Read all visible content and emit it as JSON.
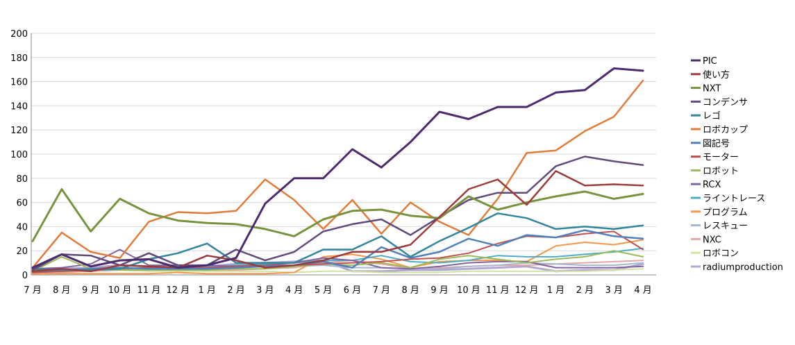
{
  "chart_data": {
    "type": "line",
    "title": "",
    "xlabel": "",
    "ylabel": "",
    "ylim": [
      0,
      200
    ],
    "yticks": [
      "0",
      "20",
      "40",
      "60",
      "80",
      "100",
      "120",
      "140",
      "160",
      "180",
      "200"
    ],
    "grid": "horizontal",
    "legend_position": "right",
    "categories": [
      "7 月",
      "8 月",
      "9 月",
      "10 月",
      "11 月",
      "12 月",
      "1 月",
      "2 月",
      "3 月",
      "4 月",
      "5 月",
      "6 月",
      "7 月",
      "8 月",
      "9 月",
      "10 月",
      "11 月",
      "12 月",
      "1 月",
      "2 月",
      "3 月",
      "4 月"
    ],
    "series": [
      {
        "name": "PIC",
        "color": "#4b2a6e",
        "width": 3,
        "values": [
          6,
          17,
          7,
          12,
          13,
          6,
          8,
          14,
          59,
          80,
          80,
          104,
          89,
          110,
          135,
          129,
          139,
          139,
          151,
          153,
          171,
          169
        ]
      },
      {
        "name": "使い方",
        "color": "#9b3b3b",
        "width": 2.5,
        "values": [
          3,
          5,
          3,
          8,
          7,
          6,
          16,
          12,
          6,
          8,
          12,
          19,
          19,
          25,
          48,
          71,
          79,
          58,
          86,
          74,
          75,
          74
        ]
      },
      {
        "name": "NXT",
        "color": "#77933c",
        "width": 3,
        "values": [
          28,
          71,
          36,
          63,
          51,
          45,
          43,
          42,
          38,
          32,
          46,
          53,
          54,
          49,
          47,
          65,
          54,
          60,
          65,
          69,
          63,
          67
        ]
      },
      {
        "name": "コンデンサ",
        "color": "#604a7b",
        "width": 2.5,
        "values": [
          4,
          17,
          16,
          8,
          18,
          8,
          8,
          21,
          12,
          19,
          36,
          42,
          46,
          33,
          48,
          62,
          68,
          68,
          90,
          98,
          94,
          91
        ]
      },
      {
        "name": "レゴ",
        "color": "#31859c",
        "width": 2.5,
        "values": [
          5,
          4,
          4,
          5,
          13,
          18,
          26,
          10,
          10,
          10,
          21,
          21,
          32,
          15,
          28,
          39,
          51,
          47,
          38,
          40,
          38,
          41
        ]
      },
      {
        "name": "ロボカップ",
        "color": "#e07b39",
        "width": 2.5,
        "values": [
          6,
          35,
          19,
          14,
          44,
          52,
          51,
          53,
          79,
          62,
          38,
          62,
          34,
          60,
          44,
          33,
          63,
          101,
          103,
          119,
          131,
          161
        ]
      },
      {
        "name": "図記号",
        "color": "#4f81bd",
        "width": 2.5,
        "values": [
          3,
          4,
          5,
          6,
          5,
          5,
          5,
          6,
          7,
          8,
          11,
          6,
          23,
          14,
          19,
          30,
          24,
          33,
          31,
          37,
          32,
          30
        ]
      },
      {
        "name": "モーター",
        "color": "#c0504d",
        "width": 2,
        "values": [
          2,
          3,
          4,
          5,
          6,
          6,
          6,
          7,
          8,
          8,
          9,
          10,
          11,
          13,
          14,
          18,
          26,
          32,
          31,
          34,
          36,
          21
        ]
      },
      {
        "name": "ロボット",
        "color": "#9bbb59",
        "width": 2,
        "values": [
          3,
          15,
          5,
          4,
          4,
          4,
          4,
          5,
          5,
          7,
          9,
          8,
          10,
          6,
          13,
          16,
          13,
          10,
          13,
          15,
          20,
          15
        ]
      },
      {
        "name": "RCX",
        "color": "#8064a2",
        "width": 2,
        "values": [
          5,
          6,
          9,
          21,
          8,
          8,
          8,
          7,
          8,
          10,
          14,
          12,
          6,
          5,
          7,
          10,
          11,
          11,
          6,
          6,
          6,
          7
        ]
      },
      {
        "name": "ライントレース",
        "color": "#4bacc6",
        "width": 2,
        "values": [
          2,
          3,
          4,
          5,
          6,
          7,
          7,
          8,
          9,
          10,
          12,
          12,
          16,
          11,
          10,
          12,
          16,
          15,
          15,
          17,
          19,
          22
        ]
      },
      {
        "name": "プログラム",
        "color": "#f79646",
        "width": 2,
        "values": [
          1,
          1,
          1,
          1,
          1,
          2,
          1,
          1,
          1,
          2,
          15,
          17,
          13,
          6,
          11,
          12,
          12,
          11,
          24,
          27,
          25,
          29
        ]
      },
      {
        "name": "レスキュー",
        "color": "#a5b6cf",
        "width": 2,
        "values": [
          3,
          4,
          5,
          5,
          4,
          4,
          4,
          6,
          7,
          7,
          8,
          6,
          6,
          5,
          5,
          7,
          8,
          10,
          9,
          8,
          8,
          10
        ]
      },
      {
        "name": "NXC",
        "color": "#e6a6a6",
        "width": 2,
        "values": [
          1,
          2,
          3,
          4,
          5,
          5,
          4,
          4,
          5,
          6,
          10,
          12,
          9,
          5,
          6,
          7,
          8,
          8,
          9,
          10,
          11,
          12
        ]
      },
      {
        "name": "ロボコン",
        "color": "#cfe3a3",
        "width": 2,
        "values": [
          2,
          3,
          3,
          4,
          3,
          3,
          3,
          3,
          3,
          2,
          3,
          3,
          2,
          2,
          2,
          3,
          3,
          3,
          3,
          3,
          4,
          5
        ]
      },
      {
        "name": "radiumproduction",
        "color": "#b3a6cf",
        "width": 3,
        "values": [
          3,
          5,
          6,
          8,
          7,
          8,
          7,
          9,
          10,
          11,
          12,
          3,
          3,
          4,
          4,
          5,
          6,
          7,
          3,
          4,
          4,
          9
        ]
      }
    ]
  }
}
